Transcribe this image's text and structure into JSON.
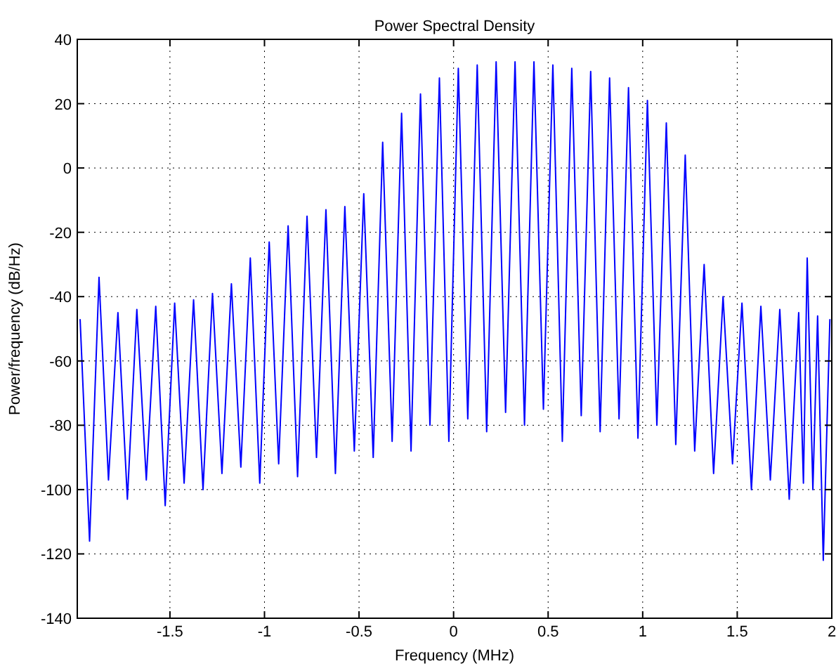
{
  "chart_data": {
    "type": "line",
    "title": "Power Spectral Density",
    "xlabel": "Frequency (MHz)",
    "ylabel": "Power/frequency (dB/Hz)",
    "xlim": [
      -1.99,
      2
    ],
    "xticks": [
      -1.5,
      -1,
      -0.5,
      0,
      0.5,
      1,
      1.5,
      2
    ],
    "ylim": [
      -140,
      40
    ],
    "yticks": [
      -140,
      -120,
      -100,
      -80,
      -60,
      -40,
      -20,
      0,
      20,
      40
    ],
    "grid": true,
    "marker": "none",
    "line_style": "solid",
    "series": [
      {
        "color": "#0000ff",
        "x": [
          -1.975,
          -1.925,
          -1.875,
          -1.825,
          -1.775,
          -1.725,
          -1.675,
          -1.625,
          -1.575,
          -1.525,
          -1.475,
          -1.425,
          -1.375,
          -1.325,
          -1.275,
          -1.225,
          -1.175,
          -1.125,
          -1.075,
          -1.025,
          -0.975,
          -0.925,
          -0.875,
          -0.825,
          -0.775,
          -0.725,
          -0.675,
          -0.625,
          -0.575,
          -0.525,
          -0.475,
          -0.425,
          -0.375,
          -0.325,
          -0.275,
          -0.225,
          -0.175,
          -0.125,
          -0.075,
          -0.025,
          0.025,
          0.075,
          0.125,
          0.175,
          0.225,
          0.275,
          0.325,
          0.375,
          0.425,
          0.475,
          0.525,
          0.575,
          0.625,
          0.675,
          0.725,
          0.775,
          0.825,
          0.875,
          0.925,
          0.975,
          1.025,
          1.075,
          1.125,
          1.175,
          1.225,
          1.275,
          1.325,
          1.375,
          1.425,
          1.475,
          1.525,
          1.575,
          1.625,
          1.675,
          1.725,
          1.775,
          1.825,
          1.85,
          1.87,
          1.9,
          1.925,
          1.955,
          1.99
        ],
        "values": [
          -47,
          -116,
          -34,
          -97,
          -45,
          -103,
          -44,
          -97,
          -43,
          -105,
          -42,
          -98,
          -41,
          -100,
          -39,
          -95,
          -36,
          -93,
          -28,
          -98,
          -23,
          -92,
          -18,
          -96,
          -15,
          -90,
          -13,
          -95,
          -12,
          -88,
          -8,
          -90,
          8,
          -85,
          17,
          -88,
          23,
          -80,
          28,
          -85,
          31,
          -78,
          32,
          -82,
          33,
          -76,
          33,
          -80,
          33,
          -75,
          32,
          -85,
          31,
          -77,
          30,
          -82,
          28,
          -78,
          25,
          -84,
          21,
          -80,
          14,
          -86,
          4,
          -88,
          -30,
          -95,
          -40,
          -92,
          -42,
          -100,
          -43,
          -97,
          -44,
          -103,
          -45,
          -98,
          -28,
          -100,
          -46,
          -122,
          -47
        ]
      }
    ]
  }
}
